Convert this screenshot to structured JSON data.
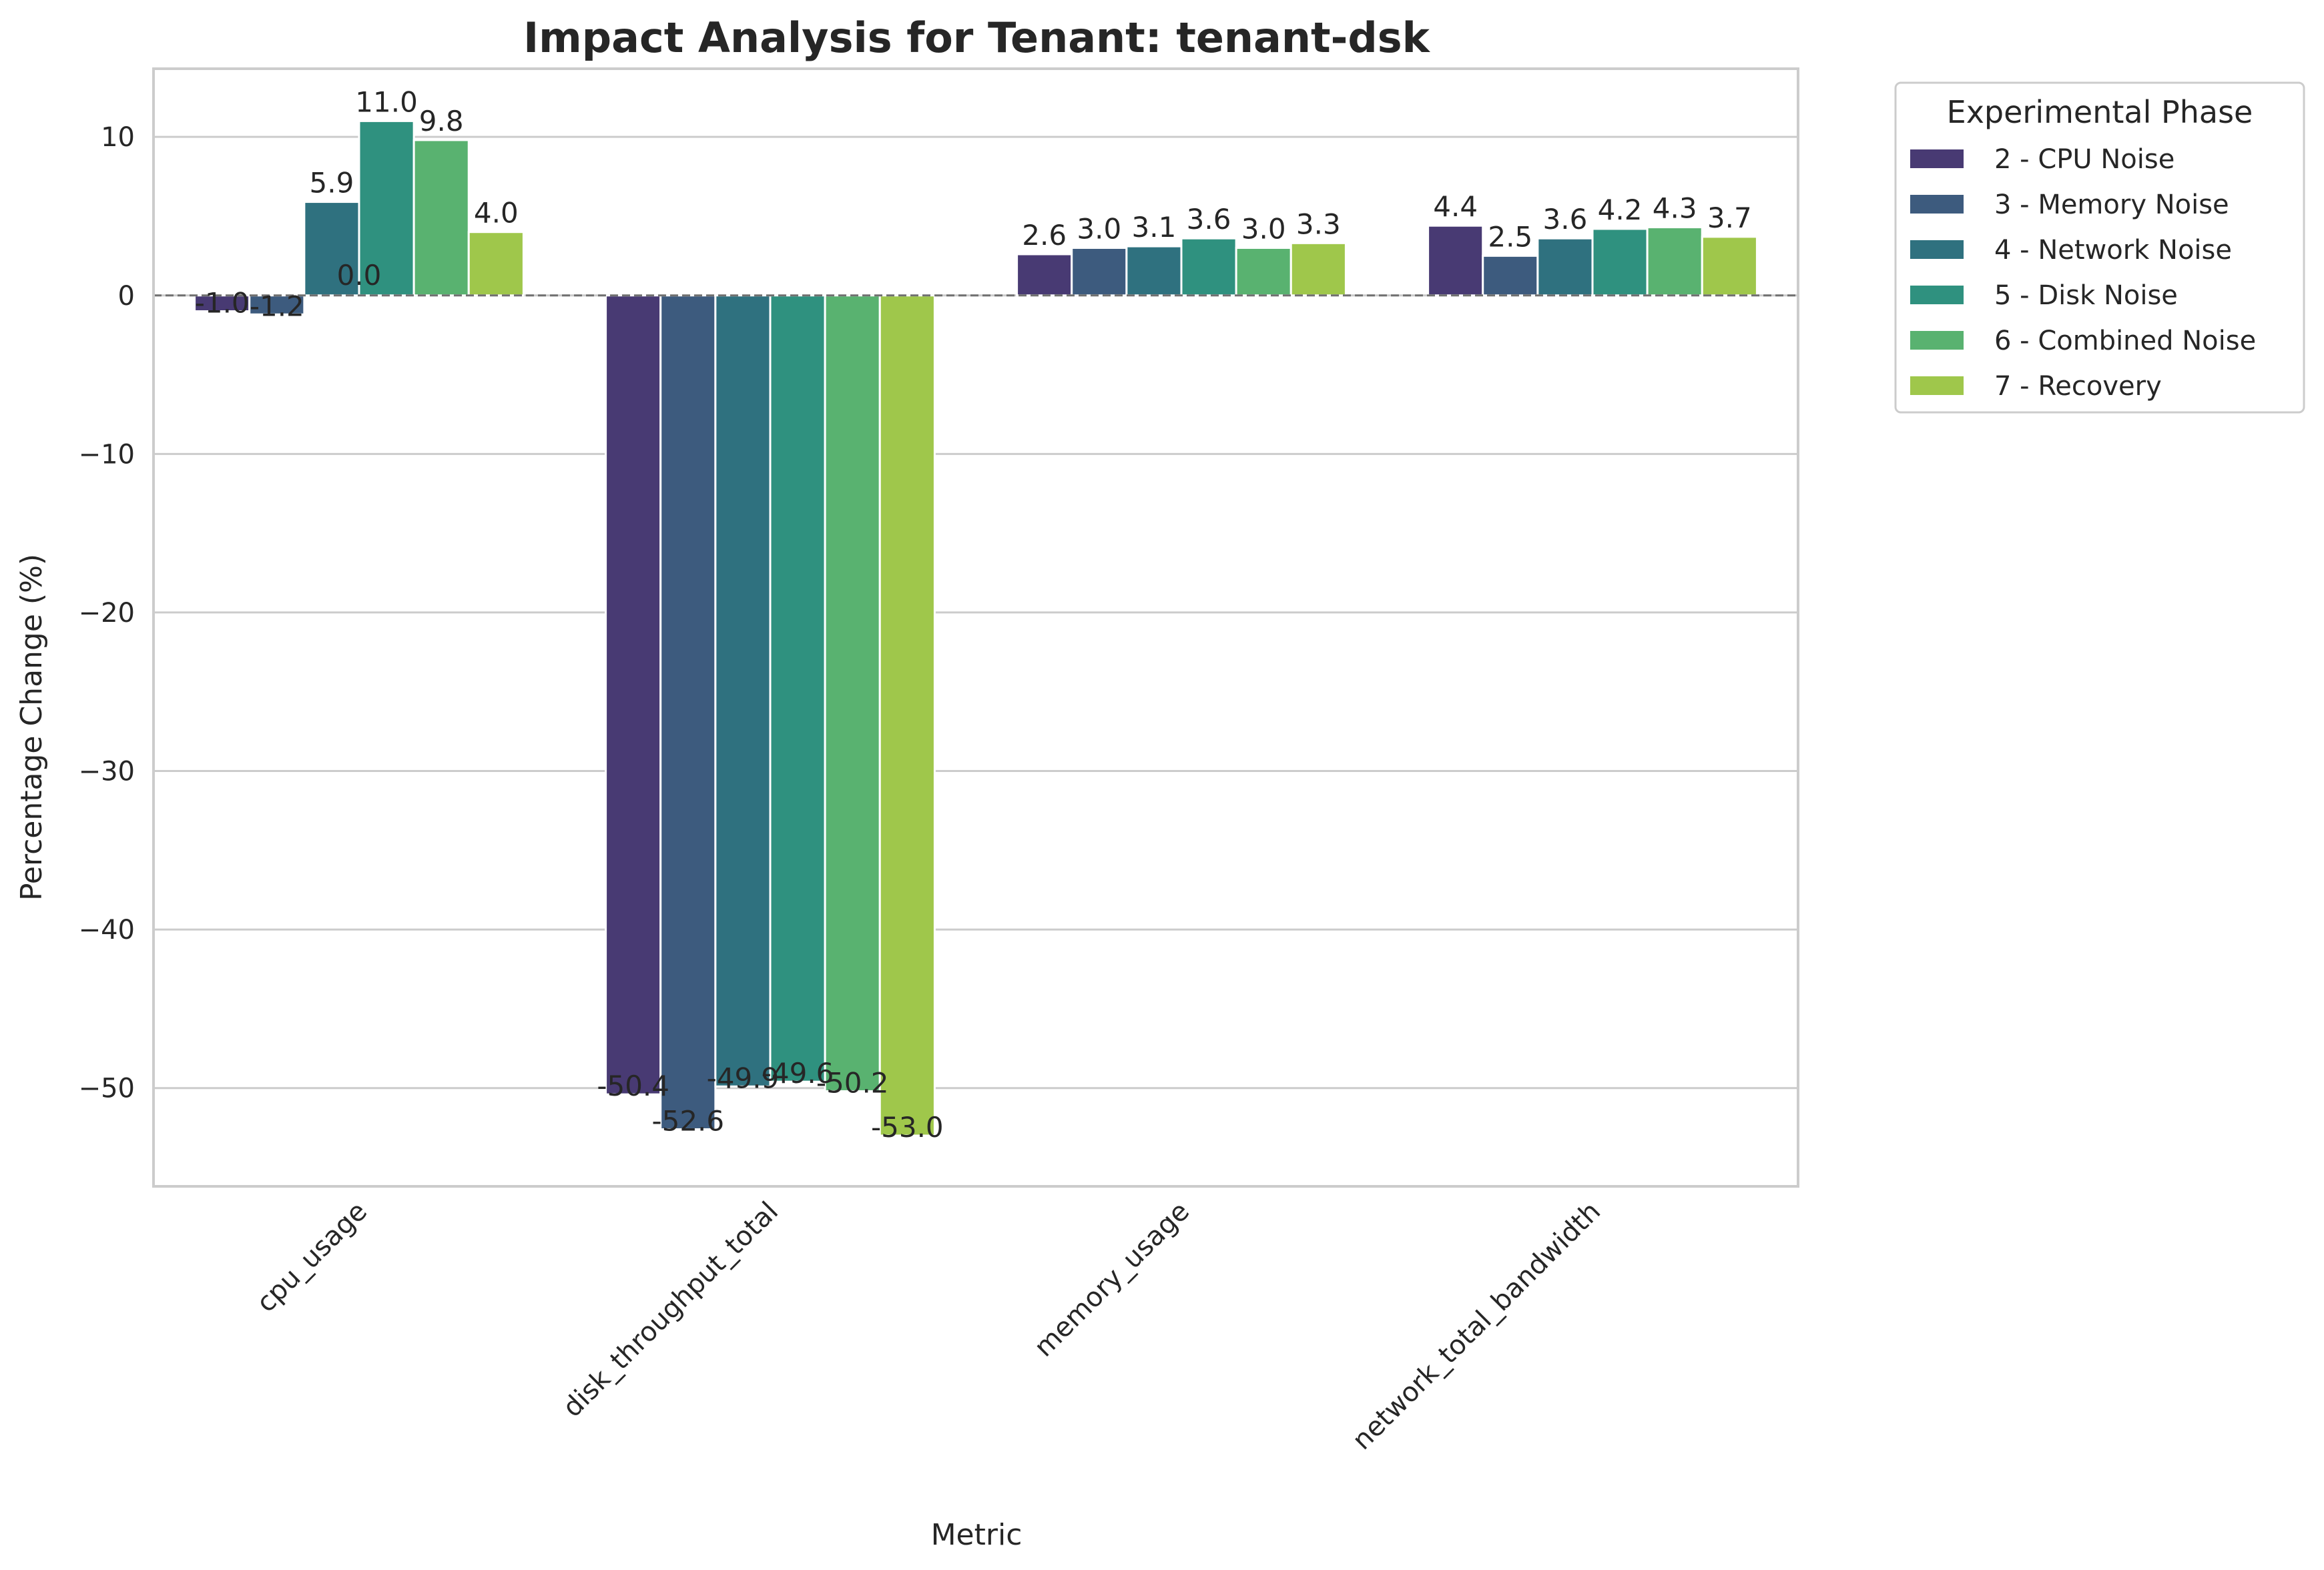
{
  "chart_data": {
    "type": "bar",
    "title": "Impact Analysis for Tenant: tenant-dsk",
    "xlabel": "Metric",
    "ylabel": "Percentage Change (%)",
    "ylim": [
      -56.2,
      14.3
    ],
    "yticks": [
      10,
      0,
      -10,
      -20,
      -30,
      -40,
      -50
    ],
    "ytick_labels": [
      "10",
      "0",
      "−10",
      "−20",
      "−30",
      "−40",
      "−50"
    ],
    "grid": true,
    "baseline_dashed": true,
    "categories": [
      "cpu_usage",
      "disk_throughput_total",
      "memory_usage",
      "network_total_bandwidth"
    ],
    "legend": {
      "title": "Experimental Phase",
      "placement": "outside-right-top"
    },
    "series": [
      {
        "name": "2 - CPU Noise",
        "color": "#483a73",
        "values": [
          -1.0,
          -50.4,
          2.6,
          4.4
        ],
        "labels": [
          "-1.0",
          "-50.4",
          "2.6",
          "4.4"
        ]
      },
      {
        "name": "3 - Memory Noise",
        "color": "#3d5b7e",
        "values": [
          -1.2,
          -52.6,
          3.0,
          2.5
        ],
        "labels": [
          "-1.2",
          "-52.6",
          "3.0",
          "2.5"
        ]
      },
      {
        "name": "4 - Network Noise",
        "color": "#2f717f",
        "values": [
          5.9,
          -49.9,
          3.1,
          3.6
        ],
        "labels": [
          "5.9",
          "-49.9",
          "3.1",
          "3.6"
        ]
      },
      {
        "name": "5 - Disk Noise",
        "color": "#2f917f",
        "values": [
          11.0,
          -49.6,
          3.6,
          4.2
        ],
        "labels": [
          "11.0",
          "-49.6",
          "3.6",
          "4.2"
        ]
      },
      {
        "name": "6 - Combined Noise",
        "color": "#59b270",
        "values": [
          9.8,
          -50.2,
          3.0,
          4.3
        ],
        "labels": [
          "9.8",
          "-50.2",
          "3.0",
          "4.3"
        ]
      },
      {
        "name": "7 - Recovery",
        "color": "#9fc74b",
        "values": [
          4.0,
          -53.0,
          3.3,
          3.7
        ],
        "labels": [
          "4.0",
          "-53.0",
          "3.3",
          "3.7"
        ]
      }
    ],
    "annotations": [
      "0.0"
    ]
  }
}
